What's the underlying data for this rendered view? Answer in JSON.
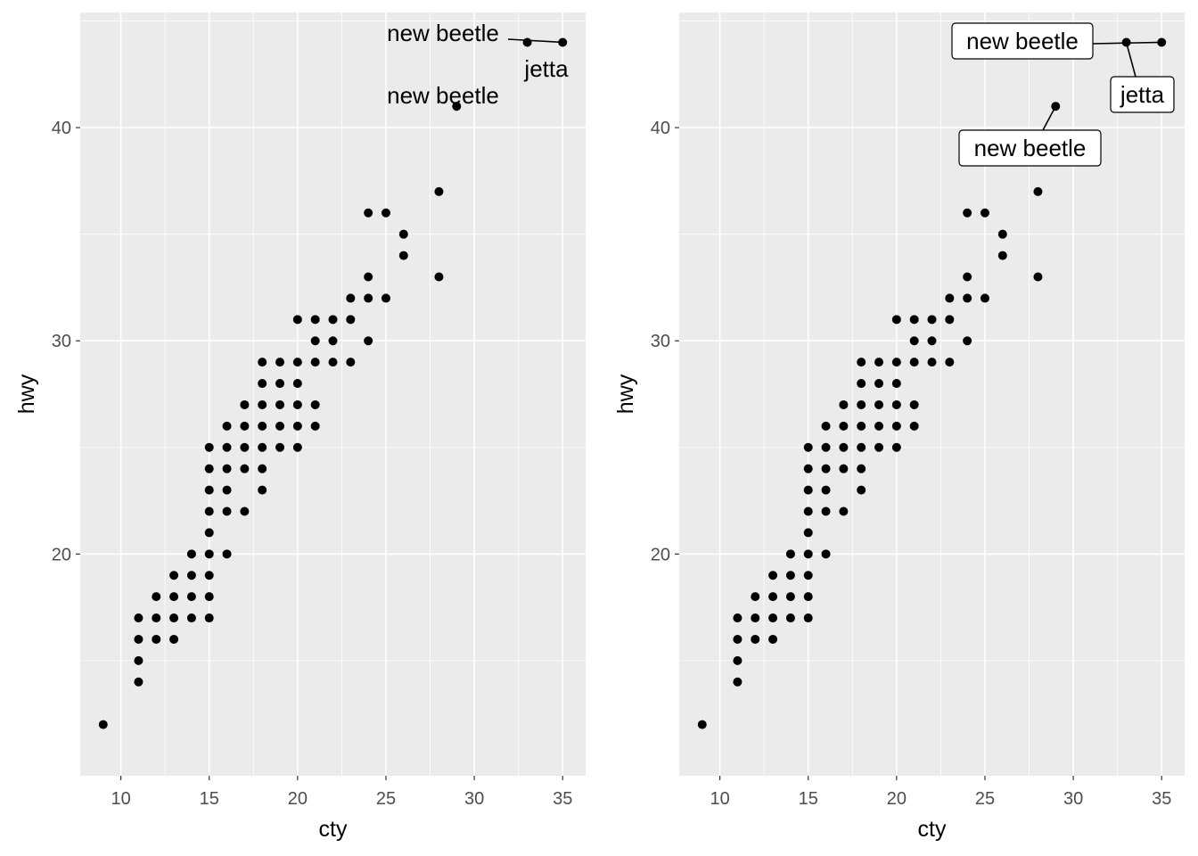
{
  "chart_data": [
    {
      "type": "scatter",
      "label_style": "text",
      "xlabel": "cty",
      "ylabel": "hwy",
      "xlim": [
        7.7,
        36.3
      ],
      "ylim": [
        9.6,
        45.4
      ],
      "x_ticks": [
        10,
        15,
        20,
        25,
        30,
        35
      ],
      "y_ticks": [
        20,
        30,
        40
      ],
      "x_tick_labels": [
        "10",
        "15",
        "20",
        "25",
        "30",
        "35"
      ],
      "y_tick_labels": [
        "20",
        "30",
        "40"
      ],
      "grid": true,
      "points": [
        [
          9,
          12
        ],
        [
          11,
          14
        ],
        [
          11,
          15
        ],
        [
          11,
          16
        ],
        [
          11,
          17
        ],
        [
          12,
          16
        ],
        [
          12,
          17
        ],
        [
          12,
          18
        ],
        [
          13,
          16
        ],
        [
          13,
          17
        ],
        [
          13,
          18
        ],
        [
          13,
          19
        ],
        [
          14,
          17
        ],
        [
          14,
          18
        ],
        [
          14,
          19
        ],
        [
          14,
          20
        ],
        [
          15,
          17
        ],
        [
          15,
          18
        ],
        [
          15,
          19
        ],
        [
          15,
          20
        ],
        [
          15,
          21
        ],
        [
          15,
          22
        ],
        [
          15,
          23
        ],
        [
          15,
          24
        ],
        [
          15,
          25
        ],
        [
          16,
          20
        ],
        [
          16,
          22
        ],
        [
          16,
          23
        ],
        [
          16,
          24
        ],
        [
          16,
          25
        ],
        [
          16,
          26
        ],
        [
          17,
          22
        ],
        [
          17,
          24
        ],
        [
          17,
          25
        ],
        [
          17,
          26
        ],
        [
          17,
          27
        ],
        [
          18,
          23
        ],
        [
          18,
          24
        ],
        [
          18,
          25
        ],
        [
          18,
          26
        ],
        [
          18,
          27
        ],
        [
          18,
          28
        ],
        [
          18,
          29
        ],
        [
          19,
          25
        ],
        [
          19,
          26
        ],
        [
          19,
          27
        ],
        [
          19,
          28
        ],
        [
          19,
          29
        ],
        [
          20,
          25
        ],
        [
          20,
          26
        ],
        [
          20,
          27
        ],
        [
          20,
          28
        ],
        [
          20,
          29
        ],
        [
          20,
          31
        ],
        [
          21,
          26
        ],
        [
          21,
          27
        ],
        [
          21,
          29
        ],
        [
          21,
          30
        ],
        [
          21,
          31
        ],
        [
          22,
          29
        ],
        [
          22,
          30
        ],
        [
          22,
          31
        ],
        [
          23,
          29
        ],
        [
          23,
          31
        ],
        [
          23,
          32
        ],
        [
          24,
          30
        ],
        [
          24,
          32
        ],
        [
          24,
          33
        ],
        [
          24,
          36
        ],
        [
          25,
          32
        ],
        [
          25,
          36
        ],
        [
          26,
          34
        ],
        [
          26,
          35
        ],
        [
          28,
          33
        ],
        [
          28,
          37
        ],
        [
          29,
          41
        ],
        [
          33,
          44
        ],
        [
          35,
          44
        ]
      ],
      "annotations": [
        {
          "text": "new beetle",
          "x": 35,
          "y": 44
        },
        {
          "text": "jetta",
          "x": 33,
          "y": 44
        },
        {
          "text": "new beetle",
          "x": 29,
          "y": 41
        }
      ]
    },
    {
      "type": "scatter",
      "label_style": "label",
      "xlabel": "cty",
      "ylabel": "hwy",
      "xlim": [
        7.7,
        36.3
      ],
      "ylim": [
        9.6,
        45.4
      ],
      "x_ticks": [
        10,
        15,
        20,
        25,
        30,
        35
      ],
      "y_ticks": [
        20,
        30,
        40
      ],
      "x_tick_labels": [
        "10",
        "15",
        "20",
        "25",
        "30",
        "35"
      ],
      "y_tick_labels": [
        "20",
        "30",
        "40"
      ],
      "grid": true,
      "points": [
        [
          9,
          12
        ],
        [
          11,
          14
        ],
        [
          11,
          15
        ],
        [
          11,
          16
        ],
        [
          11,
          17
        ],
        [
          12,
          16
        ],
        [
          12,
          17
        ],
        [
          12,
          18
        ],
        [
          13,
          16
        ],
        [
          13,
          17
        ],
        [
          13,
          18
        ],
        [
          13,
          19
        ],
        [
          14,
          17
        ],
        [
          14,
          18
        ],
        [
          14,
          19
        ],
        [
          14,
          20
        ],
        [
          15,
          17
        ],
        [
          15,
          18
        ],
        [
          15,
          19
        ],
        [
          15,
          20
        ],
        [
          15,
          21
        ],
        [
          15,
          22
        ],
        [
          15,
          23
        ],
        [
          15,
          24
        ],
        [
          15,
          25
        ],
        [
          16,
          20
        ],
        [
          16,
          22
        ],
        [
          16,
          23
        ],
        [
          16,
          24
        ],
        [
          16,
          25
        ],
        [
          16,
          26
        ],
        [
          17,
          22
        ],
        [
          17,
          24
        ],
        [
          17,
          25
        ],
        [
          17,
          26
        ],
        [
          17,
          27
        ],
        [
          18,
          23
        ],
        [
          18,
          24
        ],
        [
          18,
          25
        ],
        [
          18,
          26
        ],
        [
          18,
          27
        ],
        [
          18,
          28
        ],
        [
          18,
          29
        ],
        [
          19,
          25
        ],
        [
          19,
          26
        ],
        [
          19,
          27
        ],
        [
          19,
          28
        ],
        [
          19,
          29
        ],
        [
          20,
          25
        ],
        [
          20,
          26
        ],
        [
          20,
          27
        ],
        [
          20,
          28
        ],
        [
          20,
          29
        ],
        [
          20,
          31
        ],
        [
          21,
          26
        ],
        [
          21,
          27
        ],
        [
          21,
          29
        ],
        [
          21,
          30
        ],
        [
          21,
          31
        ],
        [
          22,
          29
        ],
        [
          22,
          30
        ],
        [
          22,
          31
        ],
        [
          23,
          29
        ],
        [
          23,
          31
        ],
        [
          23,
          32
        ],
        [
          24,
          30
        ],
        [
          24,
          32
        ],
        [
          24,
          33
        ],
        [
          24,
          36
        ],
        [
          25,
          32
        ],
        [
          25,
          36
        ],
        [
          26,
          34
        ],
        [
          26,
          35
        ],
        [
          28,
          33
        ],
        [
          28,
          37
        ],
        [
          29,
          41
        ],
        [
          33,
          44
        ],
        [
          35,
          44
        ]
      ],
      "annotations": [
        {
          "text": "new beetle",
          "x": 35,
          "y": 44
        },
        {
          "text": "jetta",
          "x": 33,
          "y": 44
        },
        {
          "text": "new beetle",
          "x": 29,
          "y": 41
        }
      ]
    }
  ],
  "colors": {
    "panel_background": "#ebebeb",
    "grid_major": "#ffffff",
    "point": "#000000",
    "tick_text": "#4d4d4d",
    "axis_title": "#000000",
    "label_fill": "#ffffff"
  }
}
